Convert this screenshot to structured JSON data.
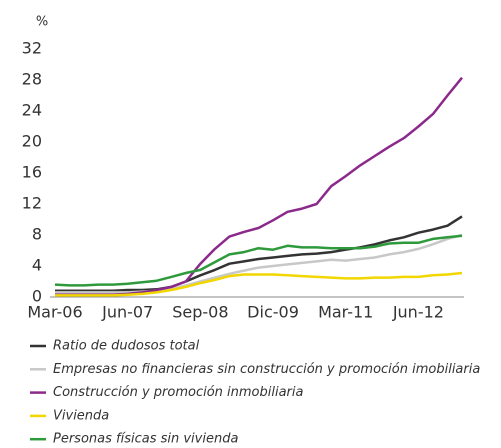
{
  "chart_data": {
    "type": "line",
    "y_label": "%",
    "categories": [
      "Mar-06",
      null,
      null,
      null,
      null,
      "Jun-07",
      null,
      null,
      null,
      null,
      "Sep-08",
      null,
      null,
      null,
      null,
      "Dic-09",
      null,
      null,
      null,
      null,
      "Mar-11",
      null,
      null,
      null,
      null,
      "Jun-12",
      null,
      null,
      null
    ],
    "ylim": [
      0,
      32
    ],
    "yticks": [
      0,
      4,
      8,
      12,
      16,
      20,
      24,
      28,
      32
    ],
    "series": [
      {
        "name": "Ratio de dudosos total",
        "color": "#333333",
        "values": [
          0.8,
          0.8,
          0.8,
          0.8,
          0.8,
          0.9,
          0.9,
          1.0,
          1.3,
          2.0,
          2.8,
          3.5,
          4.3,
          4.6,
          4.9,
          5.1,
          5.3,
          5.5,
          5.6,
          5.8,
          6.1,
          6.4,
          6.8,
          7.3,
          7.7,
          8.3,
          8.7,
          9.2,
          10.4
        ]
      },
      {
        "name": "Empresas no financieras sin construcción y promoción imobiliaria",
        "color": "#c8c8c8",
        "values": [
          0.6,
          0.6,
          0.6,
          0.6,
          0.6,
          0.6,
          0.7,
          0.8,
          1.0,
          1.5,
          2.0,
          2.5,
          3.0,
          3.4,
          3.8,
          4.0,
          4.2,
          4.4,
          4.6,
          4.8,
          4.7,
          4.9,
          5.1,
          5.5,
          5.8,
          6.2,
          6.8,
          7.5,
          8.0
        ]
      },
      {
        "name": "Construcción y promoción inmobiliaria",
        "color": "#8b2a8b",
        "values": [
          0.3,
          0.3,
          0.3,
          0.3,
          0.3,
          0.4,
          0.6,
          0.9,
          1.3,
          2.0,
          4.3,
          6.2,
          7.8,
          8.4,
          8.9,
          9.9,
          11.0,
          11.4,
          12.0,
          14.3,
          15.6,
          17.0,
          18.2,
          19.4,
          20.5,
          22.0,
          23.6,
          26.0,
          28.3
        ]
      },
      {
        "name": "Vivienda",
        "color": "#f2d600",
        "values": [
          0.2,
          0.2,
          0.2,
          0.2,
          0.2,
          0.3,
          0.4,
          0.6,
          0.9,
          1.3,
          1.8,
          2.2,
          2.7,
          2.9,
          2.9,
          2.9,
          2.8,
          2.7,
          2.6,
          2.5,
          2.4,
          2.4,
          2.5,
          2.5,
          2.6,
          2.6,
          2.8,
          2.9,
          3.1
        ]
      },
      {
        "name": "Personas físicas sin vivienda",
        "color": "#2e9a3c",
        "values": [
          1.6,
          1.5,
          1.5,
          1.6,
          1.6,
          1.7,
          1.9,
          2.1,
          2.6,
          3.1,
          3.5,
          4.5,
          5.5,
          5.8,
          6.3,
          6.1,
          6.6,
          6.4,
          6.4,
          6.3,
          6.3,
          6.3,
          6.5,
          6.9,
          7.0,
          7.0,
          7.5,
          7.7,
          7.9
        ]
      }
    ]
  }
}
